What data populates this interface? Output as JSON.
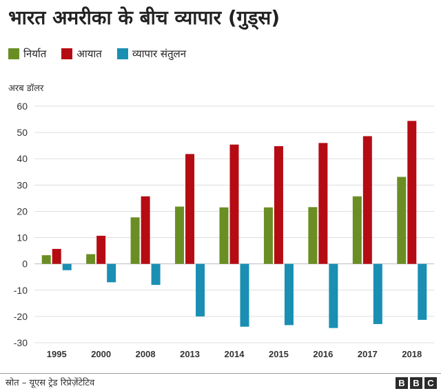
{
  "title": "भारत अमरीका के बीच व्यापार (गुड्स)",
  "unit_label": "अरब डॉलर",
  "source": "स्रोत – यूएस ट्रेड रिप्रेज़ेंटेटिव",
  "logo_text": [
    "B",
    "B",
    "C"
  ],
  "colors": {
    "exports": "#6a8e23",
    "imports": "#b50c14",
    "balance": "#1a8fb3",
    "grid": "#dddddd",
    "axis_text": "#333333"
  },
  "chart_data": {
    "type": "bar",
    "categories": [
      "1995",
      "2000",
      "2008",
      "2013",
      "2014",
      "2015",
      "2016",
      "2017",
      "2018"
    ],
    "series": [
      {
        "name": "निर्यात",
        "color_key": "exports",
        "values": [
          3.3,
          3.7,
          17.7,
          21.8,
          21.5,
          21.5,
          21.6,
          25.7,
          33.1
        ]
      },
      {
        "name": "आयात",
        "color_key": "imports",
        "values": [
          5.7,
          10.7,
          25.7,
          41.8,
          45.4,
          44.8,
          46.0,
          48.6,
          54.4
        ]
      },
      {
        "name": "व्यापार संतुलन",
        "color_key": "balance",
        "values": [
          -2.4,
          -7.0,
          -8.0,
          -20.0,
          -23.9,
          -23.3,
          -24.4,
          -22.9,
          -21.3
        ]
      }
    ],
    "ylim": [
      -30,
      60
    ],
    "yticks": [
      60,
      50,
      40,
      30,
      20,
      10,
      0,
      -10,
      -20,
      -30
    ],
    "grid": true,
    "legend_position": "top-left"
  }
}
